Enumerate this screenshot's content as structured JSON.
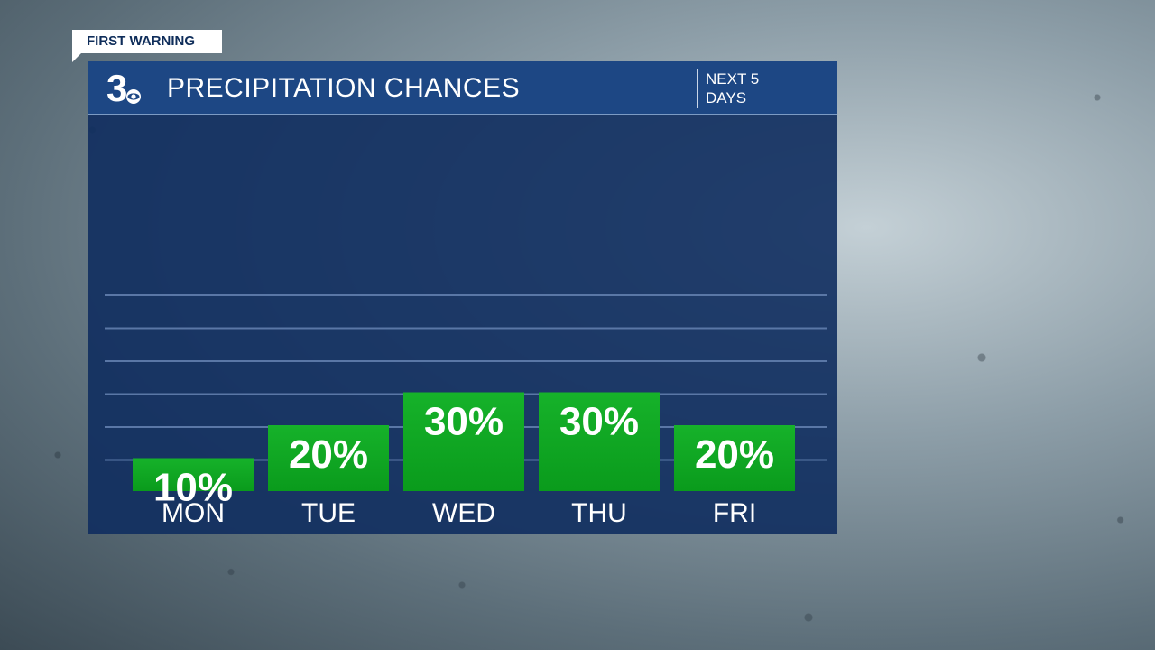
{
  "badge": {
    "label": "FIRST WARNING"
  },
  "logo": {
    "text": "3",
    "icon": "cbs-eye-icon"
  },
  "header": {
    "title": "PRECIPITATION CHANCES",
    "subtitle": "NEXT 5\nDAYS"
  },
  "colors": {
    "panel": "#102d5f",
    "header": "#1d4784",
    "bar": "#0a9b1c",
    "bar_light": "#16b22a",
    "gridline": "#5a77a6",
    "text": "#ffffff"
  },
  "chart_data": {
    "type": "bar",
    "title": "PRECIPITATION CHANCES",
    "categories": [
      "MON",
      "TUE",
      "WED",
      "THU",
      "FRI"
    ],
    "values": [
      10,
      20,
      30,
      30,
      20
    ],
    "data_labels": [
      "10%",
      "20%",
      "30%",
      "30%",
      "20%"
    ],
    "unit": "%",
    "ylim": [
      0,
      60
    ],
    "grid": true
  }
}
